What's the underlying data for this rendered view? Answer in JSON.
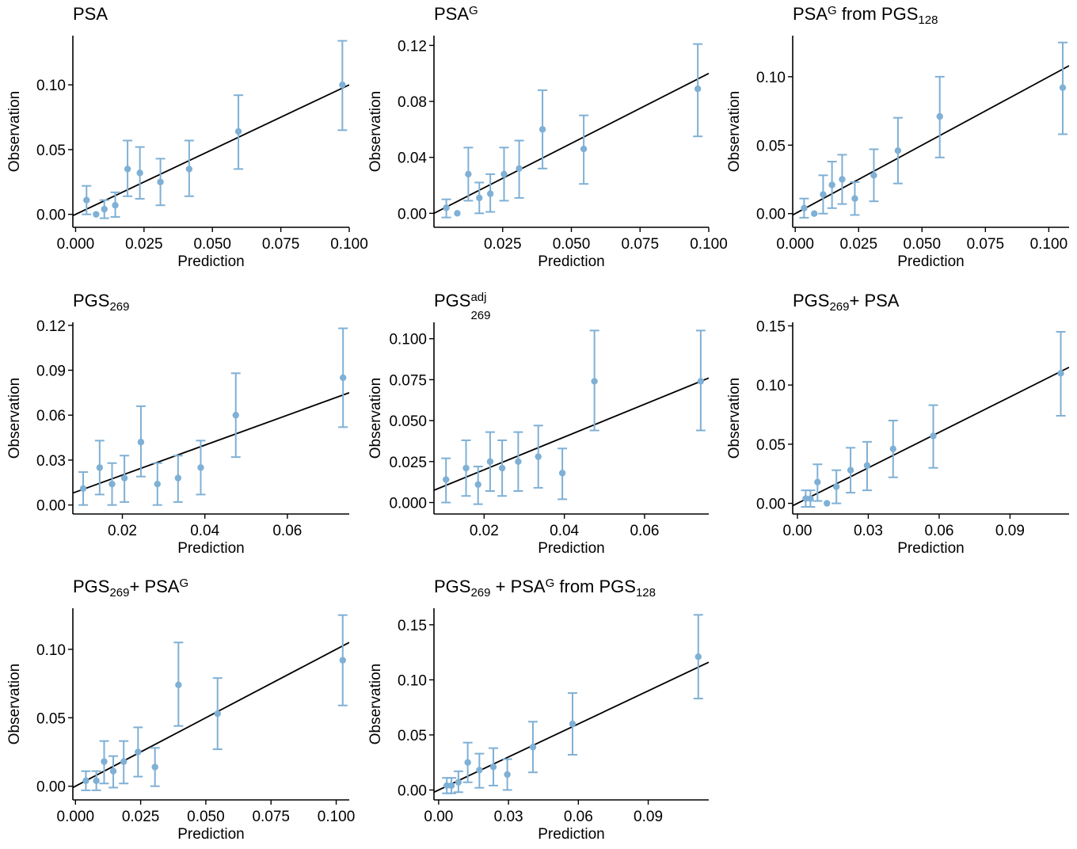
{
  "colors": {
    "point": "#7FB0D5",
    "line": "#000000",
    "axis": "#000000"
  },
  "chart_data": [
    {
      "type": "scatter",
      "title": {
        "base": "PSA",
        "sup": "",
        "sub": "",
        "tail": []
      },
      "xlabel": "Prediction",
      "ylabel": "Observation",
      "xlim": [
        -0.001,
        0.1
      ],
      "ylim": [
        -0.01,
        0.138
      ],
      "xticks": [
        0.0,
        0.025,
        0.05,
        0.075,
        0.1
      ],
      "xtick_labels": [
        "0.000",
        "0.025",
        "0.050",
        "0.075",
        "0.100"
      ],
      "yticks": [
        0.0,
        0.05,
        0.1
      ],
      "ytick_labels": [
        "0.00",
        "0.05",
        "0.10"
      ],
      "reference_line": {
        "slope": 1,
        "intercept": 0
      },
      "points": [
        {
          "x": 0.004,
          "y": 0.011,
          "lo": 0.0,
          "hi": 0.022
        },
        {
          "x": 0.0075,
          "y": 0.0,
          "lo": 0.0,
          "hi": 0.0
        },
        {
          "x": 0.0105,
          "y": 0.004,
          "lo": -0.003,
          "hi": 0.011
        },
        {
          "x": 0.0145,
          "y": 0.007,
          "lo": -0.002,
          "hi": 0.017
        },
        {
          "x": 0.019,
          "y": 0.035,
          "lo": 0.014,
          "hi": 0.057
        },
        {
          "x": 0.0235,
          "y": 0.032,
          "lo": 0.012,
          "hi": 0.052
        },
        {
          "x": 0.031,
          "y": 0.025,
          "lo": 0.007,
          "hi": 0.043
        },
        {
          "x": 0.0415,
          "y": 0.035,
          "lo": 0.014,
          "hi": 0.057
        },
        {
          "x": 0.0595,
          "y": 0.064,
          "lo": 0.035,
          "hi": 0.092
        },
        {
          "x": 0.0975,
          "y": 0.1,
          "lo": 0.065,
          "hi": 0.134
        }
      ]
    },
    {
      "type": "scatter",
      "title": {
        "base": "PSA",
        "sup": "G",
        "sub": "",
        "tail": []
      },
      "xlabel": "Prediction",
      "ylabel": "Observation",
      "xlim": [
        0.0,
        0.1
      ],
      "ylim": [
        -0.01,
        0.127
      ],
      "xticks": [
        0.025,
        0.05,
        0.075,
        0.1
      ],
      "xtick_labels": [
        "0.025",
        "0.050",
        "0.075",
        "0.100"
      ],
      "yticks": [
        0.0,
        0.04,
        0.08,
        0.12
      ],
      "ytick_labels": [
        "0.00",
        "0.04",
        "0.08",
        "0.12"
      ],
      "reference_line": {
        "slope": 1,
        "intercept": 0
      },
      "points": [
        {
          "x": 0.0045,
          "y": 0.004,
          "lo": -0.003,
          "hi": 0.01
        },
        {
          "x": 0.0085,
          "y": 0.0,
          "lo": 0.0,
          "hi": 0.0
        },
        {
          "x": 0.0125,
          "y": 0.028,
          "lo": 0.009,
          "hi": 0.047
        },
        {
          "x": 0.0165,
          "y": 0.011,
          "lo": 0.0,
          "hi": 0.022
        },
        {
          "x": 0.0205,
          "y": 0.014,
          "lo": 0.001,
          "hi": 0.028
        },
        {
          "x": 0.0255,
          "y": 0.028,
          "lo": 0.009,
          "hi": 0.047
        },
        {
          "x": 0.031,
          "y": 0.032,
          "lo": 0.011,
          "hi": 0.052
        },
        {
          "x": 0.0395,
          "y": 0.06,
          "lo": 0.032,
          "hi": 0.088
        },
        {
          "x": 0.0545,
          "y": 0.046,
          "lo": 0.021,
          "hi": 0.07
        },
        {
          "x": 0.096,
          "y": 0.089,
          "lo": 0.055,
          "hi": 0.121
        }
      ]
    },
    {
      "type": "scatter",
      "title": {
        "base": "PSA",
        "sup": "G",
        "sub": "",
        "tail": [
          {
            "text": " from PGS",
            "sub": "128"
          }
        ]
      },
      "xlabel": "Prediction",
      "ylabel": "Observation",
      "xlim": [
        -0.001,
        0.108
      ],
      "ylim": [
        -0.01,
        0.13
      ],
      "xticks": [
        0.0,
        0.025,
        0.05,
        0.075,
        0.1
      ],
      "xtick_labels": [
        "0.000",
        "0.025",
        "0.050",
        "0.075",
        "0.100"
      ],
      "yticks": [
        0.0,
        0.05,
        0.1
      ],
      "ytick_labels": [
        "0.00",
        "0.05",
        "0.10"
      ],
      "reference_line": {
        "slope": 1,
        "intercept": 0
      },
      "points": [
        {
          "x": 0.0035,
          "y": 0.004,
          "lo": -0.003,
          "hi": 0.011
        },
        {
          "x": 0.0075,
          "y": 0.0,
          "lo": 0.0,
          "hi": 0.0
        },
        {
          "x": 0.011,
          "y": 0.014,
          "lo": 0.0,
          "hi": 0.028
        },
        {
          "x": 0.0145,
          "y": 0.021,
          "lo": 0.004,
          "hi": 0.038
        },
        {
          "x": 0.0185,
          "y": 0.025,
          "lo": 0.007,
          "hi": 0.043
        },
        {
          "x": 0.0235,
          "y": 0.011,
          "lo": -0.001,
          "hi": 0.023
        },
        {
          "x": 0.031,
          "y": 0.028,
          "lo": 0.009,
          "hi": 0.047
        },
        {
          "x": 0.0405,
          "y": 0.046,
          "lo": 0.022,
          "hi": 0.07
        },
        {
          "x": 0.057,
          "y": 0.071,
          "lo": 0.041,
          "hi": 0.1
        },
        {
          "x": 0.1055,
          "y": 0.092,
          "lo": 0.058,
          "hi": 0.125
        }
      ]
    },
    {
      "type": "scatter",
      "title": {
        "base": "PGS",
        "sup": "",
        "sub": "269",
        "tail": []
      },
      "xlabel": "Prediction",
      "ylabel": "Observation",
      "xlim": [
        0.008,
        0.075
      ],
      "ylim": [
        -0.006,
        0.122
      ],
      "xticks": [
        0.02,
        0.04,
        0.06
      ],
      "xtick_labels": [
        "0.02",
        "0.04",
        "0.06"
      ],
      "yticks": [
        0.0,
        0.03,
        0.06,
        0.09,
        0.12
      ],
      "ytick_labels": [
        "0.00",
        "0.03",
        "0.06",
        "0.09",
        "0.12"
      ],
      "reference_line": {
        "slope": 1,
        "intercept": 0
      },
      "points": [
        {
          "x": 0.0105,
          "y": 0.011,
          "lo": 0.0,
          "hi": 0.022
        },
        {
          "x": 0.0145,
          "y": 0.025,
          "lo": 0.007,
          "hi": 0.043
        },
        {
          "x": 0.0175,
          "y": 0.014,
          "lo": 0.0,
          "hi": 0.028
        },
        {
          "x": 0.0205,
          "y": 0.018,
          "lo": 0.002,
          "hi": 0.033
        },
        {
          "x": 0.0245,
          "y": 0.042,
          "lo": 0.019,
          "hi": 0.066
        },
        {
          "x": 0.0285,
          "y": 0.014,
          "lo": 0.0,
          "hi": 0.028
        },
        {
          "x": 0.0335,
          "y": 0.018,
          "lo": 0.002,
          "hi": 0.033
        },
        {
          "x": 0.039,
          "y": 0.025,
          "lo": 0.007,
          "hi": 0.043
        },
        {
          "x": 0.0475,
          "y": 0.06,
          "lo": 0.032,
          "hi": 0.088
        },
        {
          "x": 0.0735,
          "y": 0.085,
          "lo": 0.052,
          "hi": 0.118
        }
      ]
    },
    {
      "type": "scatter",
      "title": {
        "base": "PGS",
        "sup": "adj",
        "sub": "269",
        "tail": []
      },
      "xlabel": "Prediction",
      "ylabel": "Observation",
      "xlim": [
        0.0075,
        0.076
      ],
      "ylim": [
        -0.007,
        0.11
      ],
      "xticks": [
        0.02,
        0.04,
        0.06
      ],
      "xtick_labels": [
        "0.02",
        "0.04",
        "0.06"
      ],
      "yticks": [
        0.0,
        0.025,
        0.05,
        0.075,
        0.1
      ],
      "ytick_labels": [
        "0.000",
        "0.025",
        "0.050",
        "0.075",
        "0.100"
      ],
      "reference_line": {
        "slope": 1,
        "intercept": 0
      },
      "points": [
        {
          "x": 0.0105,
          "y": 0.014,
          "lo": 0.0,
          "hi": 0.027
        },
        {
          "x": 0.0155,
          "y": 0.021,
          "lo": 0.004,
          "hi": 0.038
        },
        {
          "x": 0.0185,
          "y": 0.011,
          "lo": -0.001,
          "hi": 0.022
        },
        {
          "x": 0.0215,
          "y": 0.025,
          "lo": 0.007,
          "hi": 0.043
        },
        {
          "x": 0.0245,
          "y": 0.021,
          "lo": 0.004,
          "hi": 0.038
        },
        {
          "x": 0.0285,
          "y": 0.025,
          "lo": 0.007,
          "hi": 0.043
        },
        {
          "x": 0.0335,
          "y": 0.028,
          "lo": 0.009,
          "hi": 0.047
        },
        {
          "x": 0.0395,
          "y": 0.018,
          "lo": 0.002,
          "hi": 0.033
        },
        {
          "x": 0.0475,
          "y": 0.074,
          "lo": 0.044,
          "hi": 0.105
        },
        {
          "x": 0.074,
          "y": 0.074,
          "lo": 0.044,
          "hi": 0.105
        }
      ]
    },
    {
      "type": "scatter",
      "title": {
        "base": "PGS",
        "sup": "",
        "sub": "269",
        "tail": [
          {
            "text": "+ PSA",
            "sub": ""
          }
        ]
      },
      "xlabel": "Prediction",
      "ylabel": "Observation",
      "xlim": [
        -0.002,
        0.115
      ],
      "ylim": [
        -0.009,
        0.153
      ],
      "xticks": [
        0.0,
        0.03,
        0.06,
        0.09
      ],
      "xtick_labels": [
        "0.00",
        "0.03",
        "0.06",
        "0.09"
      ],
      "yticks": [
        0.0,
        0.05,
        0.1,
        0.15
      ],
      "ytick_labels": [
        "0.00",
        "0.05",
        "0.10",
        "0.15"
      ],
      "reference_line": {
        "slope": 1,
        "intercept": 0
      },
      "points": [
        {
          "x": 0.0035,
          "y": 0.004,
          "lo": -0.003,
          "hi": 0.011
        },
        {
          "x": 0.0055,
          "y": 0.004,
          "lo": -0.003,
          "hi": 0.011
        },
        {
          "x": 0.0085,
          "y": 0.018,
          "lo": 0.002,
          "hi": 0.033
        },
        {
          "x": 0.0125,
          "y": 0.0,
          "lo": 0.0,
          "hi": 0.0
        },
        {
          "x": 0.0165,
          "y": 0.014,
          "lo": 0.0,
          "hi": 0.028
        },
        {
          "x": 0.0225,
          "y": 0.028,
          "lo": 0.009,
          "hi": 0.047
        },
        {
          "x": 0.0295,
          "y": 0.032,
          "lo": 0.011,
          "hi": 0.052
        },
        {
          "x": 0.0405,
          "y": 0.046,
          "lo": 0.022,
          "hi": 0.07
        },
        {
          "x": 0.0575,
          "y": 0.057,
          "lo": 0.03,
          "hi": 0.083
        },
        {
          "x": 0.1115,
          "y": 0.11,
          "lo": 0.074,
          "hi": 0.145
        }
      ]
    },
    {
      "type": "scatter",
      "title": {
        "base": "PGS",
        "sup": "",
        "sub": "269",
        "tail": [
          {
            "text": "+ PSA",
            "sub": "",
            "sup": "G"
          }
        ]
      },
      "xlabel": "Prediction",
      "ylabel": "Observation",
      "xlim": [
        -0.001,
        0.105
      ],
      "ylim": [
        -0.01,
        0.13
      ],
      "xticks": [
        0.0,
        0.025,
        0.05,
        0.075,
        0.1
      ],
      "xtick_labels": [
        "0.000",
        "0.025",
        "0.050",
        "0.075",
        "0.100"
      ],
      "yticks": [
        0.0,
        0.05,
        0.1
      ],
      "ytick_labels": [
        "0.00",
        "0.05",
        "0.10"
      ],
      "reference_line": {
        "slope": 1,
        "intercept": 0
      },
      "points": [
        {
          "x": 0.004,
          "y": 0.004,
          "lo": -0.003,
          "hi": 0.011
        },
        {
          "x": 0.008,
          "y": 0.004,
          "lo": -0.003,
          "hi": 0.011
        },
        {
          "x": 0.011,
          "y": 0.018,
          "lo": 0.002,
          "hi": 0.033
        },
        {
          "x": 0.0145,
          "y": 0.011,
          "lo": -0.001,
          "hi": 0.022
        },
        {
          "x": 0.0185,
          "y": 0.018,
          "lo": 0.002,
          "hi": 0.033
        },
        {
          "x": 0.024,
          "y": 0.025,
          "lo": 0.007,
          "hi": 0.043
        },
        {
          "x": 0.0305,
          "y": 0.014,
          "lo": 0.0,
          "hi": 0.028
        },
        {
          "x": 0.0395,
          "y": 0.074,
          "lo": 0.044,
          "hi": 0.105
        },
        {
          "x": 0.0545,
          "y": 0.053,
          "lo": 0.027,
          "hi": 0.079
        },
        {
          "x": 0.1025,
          "y": 0.092,
          "lo": 0.059,
          "hi": 0.125
        }
      ]
    },
    {
      "type": "scatter",
      "title": {
        "base": "PGS",
        "sup": "",
        "sub": "269",
        "tail": [
          {
            "text": "  + PSA",
            "sub": "",
            "sup": "G"
          },
          {
            "text": " from PGS",
            "sub": "128"
          }
        ]
      },
      "xlabel": "Prediction",
      "ylabel": "Observation",
      "xlim": [
        -0.002,
        0.116
      ],
      "ylim": [
        -0.009,
        0.165
      ],
      "xticks": [
        0.0,
        0.03,
        0.06,
        0.09
      ],
      "xtick_labels": [
        "0.00",
        "0.03",
        "0.06",
        "0.09"
      ],
      "yticks": [
        0.0,
        0.05,
        0.1,
        0.15
      ],
      "ytick_labels": [
        "0.00",
        "0.05",
        "0.10",
        "0.15"
      ],
      "reference_line": {
        "slope": 1,
        "intercept": 0
      },
      "points": [
        {
          "x": 0.0035,
          "y": 0.004,
          "lo": -0.003,
          "hi": 0.011
        },
        {
          "x": 0.0055,
          "y": 0.004,
          "lo": -0.003,
          "hi": 0.011
        },
        {
          "x": 0.0085,
          "y": 0.007,
          "lo": -0.002,
          "hi": 0.017
        },
        {
          "x": 0.0125,
          "y": 0.025,
          "lo": 0.007,
          "hi": 0.043
        },
        {
          "x": 0.0175,
          "y": 0.018,
          "lo": 0.002,
          "hi": 0.033
        },
        {
          "x": 0.0235,
          "y": 0.021,
          "lo": 0.004,
          "hi": 0.038
        },
        {
          "x": 0.0295,
          "y": 0.014,
          "lo": 0.0,
          "hi": 0.028
        },
        {
          "x": 0.0405,
          "y": 0.039,
          "lo": 0.016,
          "hi": 0.062
        },
        {
          "x": 0.0575,
          "y": 0.06,
          "lo": 0.032,
          "hi": 0.088
        },
        {
          "x": 0.1115,
          "y": 0.121,
          "lo": 0.083,
          "hi": 0.159
        }
      ]
    }
  ]
}
